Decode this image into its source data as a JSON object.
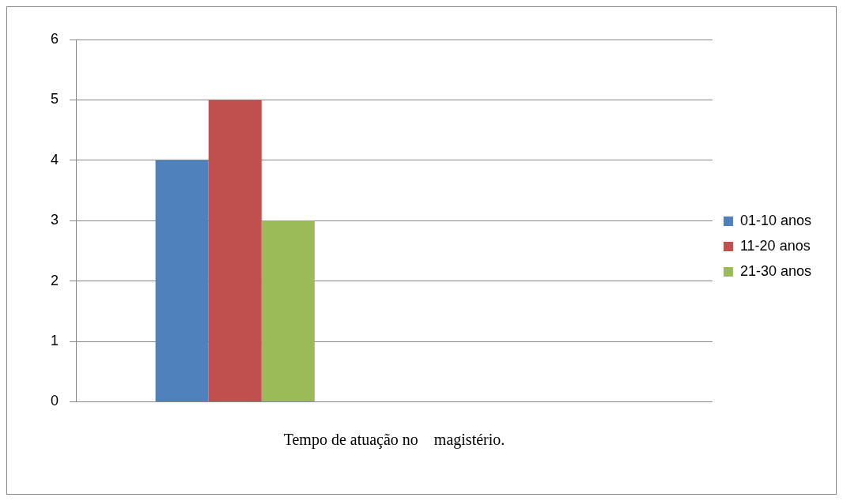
{
  "chart_data": {
    "type": "bar",
    "xlabel": "Tempo de atuação no    magistério.",
    "categories": [
      null,
      null
    ],
    "series": [
      {
        "name": "01-10 anos",
        "color": "#4f81bd",
        "values": [
          4,
          null
        ]
      },
      {
        "name": "11-20 anos",
        "color": "#c0504d",
        "values": [
          5,
          null
        ]
      },
      {
        "name": "21-30 anos",
        "color": "#9bbb59",
        "values": [
          3,
          null
        ]
      }
    ],
    "ylim": [
      0,
      6
    ],
    "yticks": [
      0,
      1,
      2,
      3,
      4,
      5,
      6
    ],
    "grid": "y",
    "legend": "right"
  }
}
